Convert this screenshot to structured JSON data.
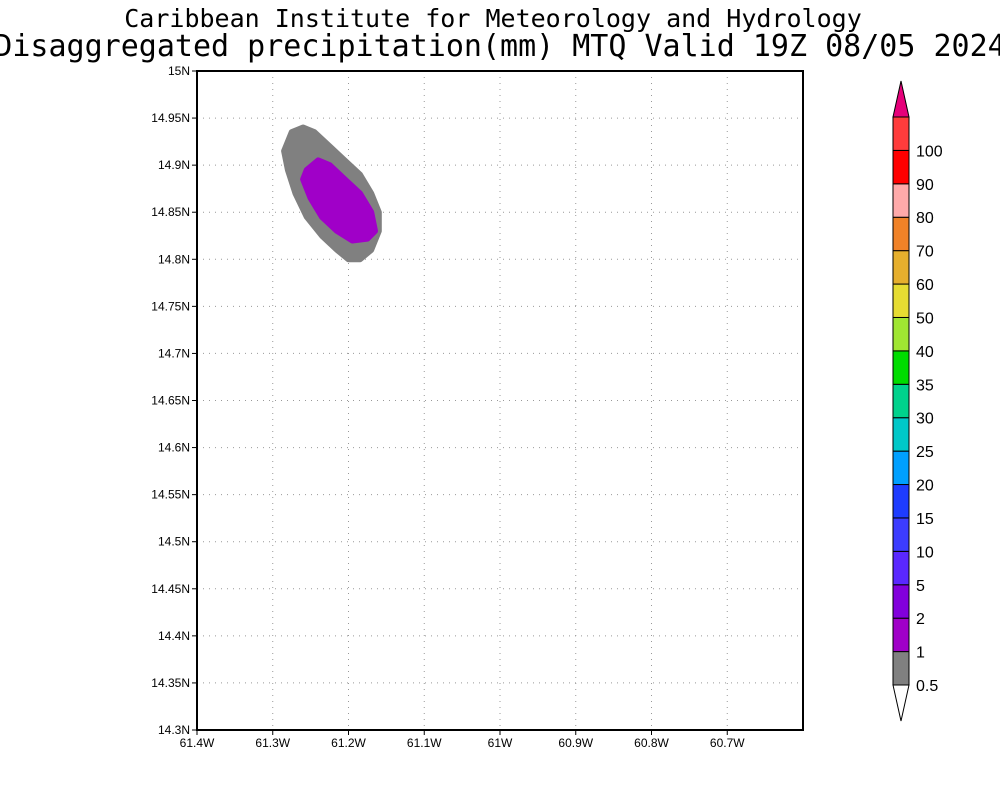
{
  "title": {
    "line1": "Caribbean Institute for Meteorology and Hydrology",
    "line2": "Disaggregated precipitation(mm) MTQ Valid 19Z 08/05 2024"
  },
  "map": {
    "lon_range": [
      -61.4,
      -60.6
    ],
    "lat_range": [
      14.3,
      15.0
    ],
    "grid": "dotted",
    "x_ticks": [
      {
        "value": -61.4,
        "label": "61.4W"
      },
      {
        "value": -61.3,
        "label": "61.3W"
      },
      {
        "value": -61.2,
        "label": "61.2W"
      },
      {
        "value": -61.1,
        "label": "61.1W"
      },
      {
        "value": -61.0,
        "label": "61W"
      },
      {
        "value": -60.9,
        "label": "60.9W"
      },
      {
        "value": -60.8,
        "label": "60.8W"
      },
      {
        "value": -60.7,
        "label": "60.7W"
      }
    ],
    "y_ticks": [
      {
        "value": 14.3,
        "label": "14.3N"
      },
      {
        "value": 14.35,
        "label": "14.35N"
      },
      {
        "value": 14.4,
        "label": "14.4N"
      },
      {
        "value": 14.45,
        "label": "14.45N"
      },
      {
        "value": 14.5,
        "label": "14.5N"
      },
      {
        "value": 14.55,
        "label": "14.55N"
      },
      {
        "value": 14.6,
        "label": "14.6N"
      },
      {
        "value": 14.65,
        "label": "14.65N"
      },
      {
        "value": 14.7,
        "label": "14.7N"
      },
      {
        "value": 14.75,
        "label": "14.75N"
      },
      {
        "value": 14.8,
        "label": "14.8N"
      },
      {
        "value": 14.85,
        "label": "14.85N"
      },
      {
        "value": 14.9,
        "label": "14.9N"
      },
      {
        "value": 14.95,
        "label": "14.95N"
      },
      {
        "value": 15.0,
        "label": "15N"
      }
    ],
    "contours": [
      {
        "range": "0.5-1",
        "color": "#808080",
        "points": [
          [
            -61.275,
            14.935
          ],
          [
            -61.26,
            14.94
          ],
          [
            -61.245,
            14.935
          ],
          [
            -61.225,
            14.92
          ],
          [
            -61.205,
            14.905
          ],
          [
            -61.185,
            14.89
          ],
          [
            -61.17,
            14.87
          ],
          [
            -61.16,
            14.85
          ],
          [
            -61.16,
            14.83
          ],
          [
            -61.17,
            14.81
          ],
          [
            -61.185,
            14.8
          ],
          [
            -61.2,
            14.8
          ],
          [
            -61.215,
            14.81
          ],
          [
            -61.235,
            14.825
          ],
          [
            -61.255,
            14.845
          ],
          [
            -61.27,
            14.87
          ],
          [
            -61.28,
            14.895
          ],
          [
            -61.285,
            14.915
          ]
        ]
      },
      {
        "range": "1-2",
        "color": "#a000c8",
        "points": [
          [
            -61.255,
            14.895
          ],
          [
            -61.24,
            14.905
          ],
          [
            -61.225,
            14.9
          ],
          [
            -61.205,
            14.885
          ],
          [
            -61.185,
            14.87
          ],
          [
            -61.17,
            14.85
          ],
          [
            -61.165,
            14.83
          ],
          [
            -61.175,
            14.822
          ],
          [
            -61.195,
            14.82
          ],
          [
            -61.215,
            14.83
          ],
          [
            -61.235,
            14.845
          ],
          [
            -61.25,
            14.865
          ],
          [
            -61.26,
            14.885
          ]
        ]
      }
    ]
  },
  "colorbar": {
    "bins": [
      {
        "color": "#808080"
      },
      {
        "color": "#a000c8"
      },
      {
        "color": "#8200dc"
      },
      {
        "color": "#5a28ff"
      },
      {
        "color": "#3c3cff"
      },
      {
        "color": "#1e3cff"
      },
      {
        "color": "#00a0ff"
      },
      {
        "color": "#00c8c8"
      },
      {
        "color": "#00d28c"
      },
      {
        "color": "#00dc00"
      },
      {
        "color": "#a0e632"
      },
      {
        "color": "#e6dc32"
      },
      {
        "color": "#e6af2d"
      },
      {
        "color": "#f08228"
      },
      {
        "color": "#ffaaaa"
      },
      {
        "color": "#ff0000"
      },
      {
        "color": "#ff3c3c"
      }
    ],
    "over_color": "#e6007a",
    "under_color": "#ffffff",
    "labels": [
      "0.5",
      "1",
      "2",
      "5",
      "10",
      "15",
      "20",
      "25",
      "30",
      "35",
      "40",
      "50",
      "60",
      "70",
      "80",
      "90",
      "100"
    ]
  }
}
